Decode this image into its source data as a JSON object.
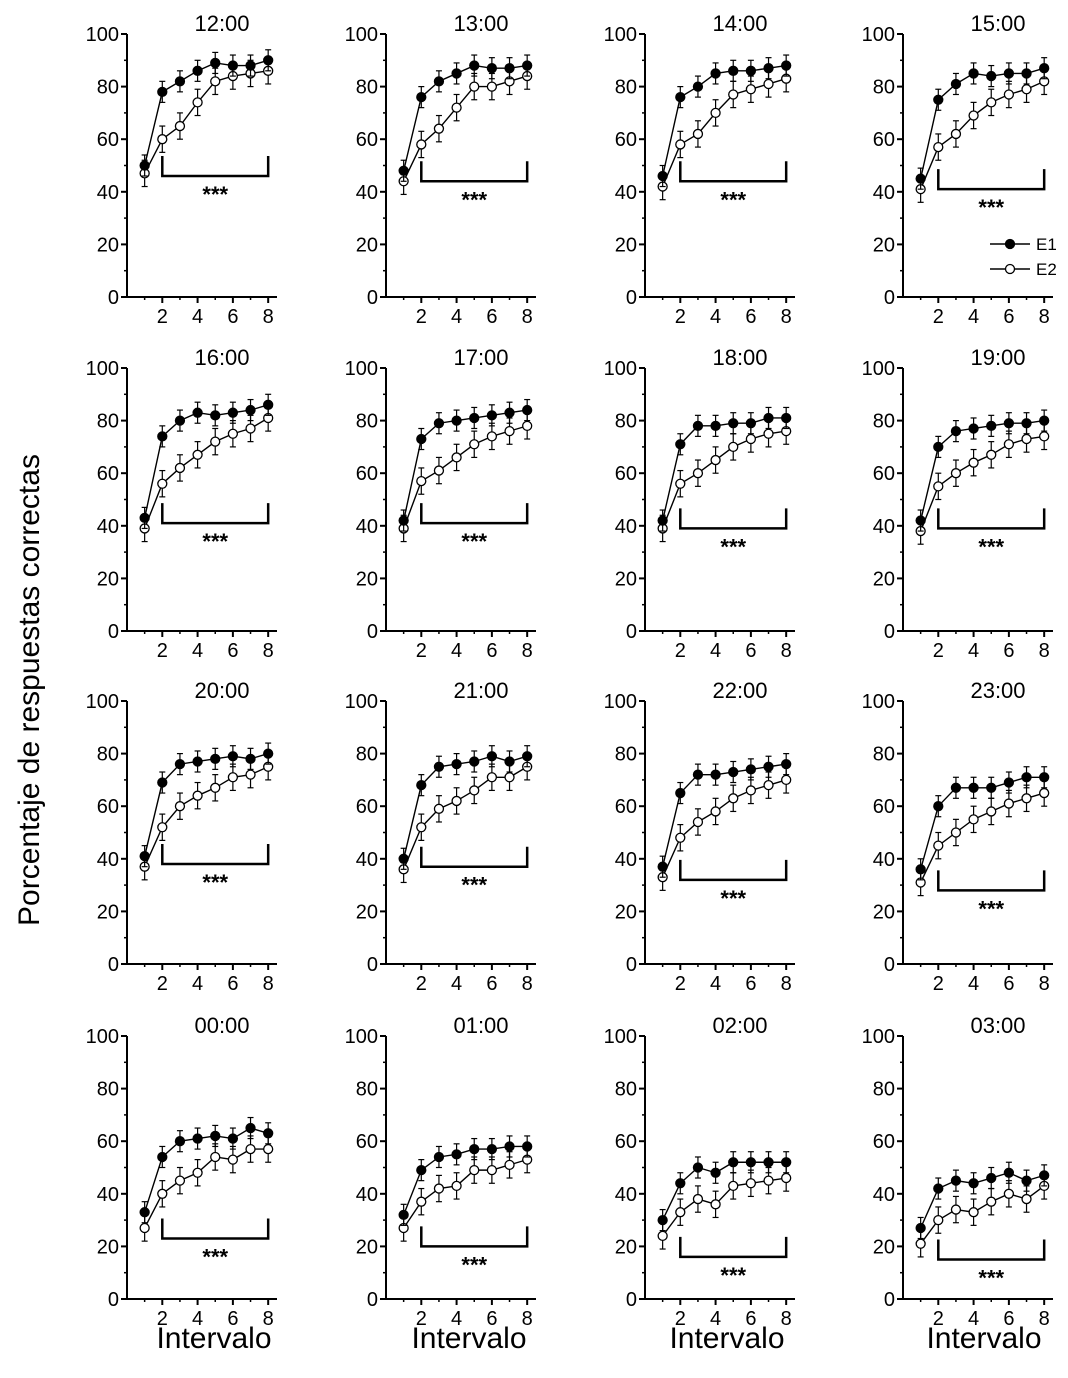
{
  "figure": {
    "ylabel": "Porcentaje de respuestas correctas",
    "xlabels": [
      "Intervalo",
      "Intervalo",
      "Intervalo",
      "Intervalo"
    ],
    "legend": {
      "entries": [
        "E1",
        "E2"
      ],
      "placement": "bottom-right of 15:00 panel"
    },
    "significance_label": "***",
    "colors": {
      "line": "#000000",
      "e1_marker": "#000000",
      "e2_marker": "#ffffff"
    }
  },
  "chart_data": [
    {
      "type": "line",
      "title": "12:00",
      "x": [
        1,
        2,
        3,
        4,
        5,
        6,
        7,
        8
      ],
      "xlim": [
        0,
        8.5
      ],
      "ylim": [
        0,
        100
      ],
      "xticks": [
        "2",
        "4",
        "6",
        "8"
      ],
      "yticks": [
        "0",
        "20",
        "40",
        "60",
        "80",
        "100"
      ],
      "series": [
        {
          "name": "E1",
          "values": [
            50,
            78,
            82,
            86,
            89,
            88,
            88,
            90
          ]
        },
        {
          "name": "E2",
          "values": [
            47,
            60,
            65,
            74,
            82,
            84,
            85,
            86
          ]
        }
      ],
      "annotation": {
        "text": "***",
        "x_from": 2,
        "x_to": 8,
        "y": 46
      }
    },
    {
      "type": "line",
      "title": "13:00",
      "x": [
        1,
        2,
        3,
        4,
        5,
        6,
        7,
        8
      ],
      "xlim": [
        0,
        8.5
      ],
      "ylim": [
        0,
        100
      ],
      "xticks": [
        "2",
        "4",
        "6",
        "8"
      ],
      "yticks": [
        "0",
        "20",
        "40",
        "60",
        "80",
        "100"
      ],
      "series": [
        {
          "name": "E1",
          "values": [
            48,
            76,
            82,
            85,
            88,
            87,
            87,
            88
          ]
        },
        {
          "name": "E2",
          "values": [
            44,
            58,
            64,
            72,
            80,
            80,
            82,
            84
          ]
        }
      ],
      "annotation": {
        "text": "***",
        "x_from": 2,
        "x_to": 8,
        "y": 44
      }
    },
    {
      "type": "line",
      "title": "14:00",
      "x": [
        1,
        2,
        3,
        4,
        5,
        6,
        7,
        8
      ],
      "xlim": [
        0,
        8.5
      ],
      "ylim": [
        0,
        100
      ],
      "xticks": [
        "2",
        "4",
        "6",
        "8"
      ],
      "yticks": [
        "0",
        "20",
        "40",
        "60",
        "80",
        "100"
      ],
      "series": [
        {
          "name": "E1",
          "values": [
            46,
            76,
            80,
            85,
            86,
            86,
            87,
            88
          ]
        },
        {
          "name": "E2",
          "values": [
            42,
            58,
            62,
            70,
            77,
            79,
            81,
            83
          ]
        }
      ],
      "annotation": {
        "text": "***",
        "x_from": 2,
        "x_to": 8,
        "y": 44
      }
    },
    {
      "type": "line",
      "title": "15:00",
      "x": [
        1,
        2,
        3,
        4,
        5,
        6,
        7,
        8
      ],
      "xlim": [
        0,
        8.5
      ],
      "ylim": [
        0,
        100
      ],
      "xticks": [
        "2",
        "4",
        "6",
        "8"
      ],
      "yticks": [
        "0",
        "20",
        "40",
        "60",
        "80",
        "100"
      ],
      "series": [
        {
          "name": "E1",
          "values": [
            45,
            75,
            81,
            85,
            84,
            85,
            85,
            87
          ]
        },
        {
          "name": "E2",
          "values": [
            41,
            57,
            62,
            69,
            74,
            77,
            79,
            82
          ]
        }
      ],
      "annotation": {
        "text": "***",
        "x_from": 2,
        "x_to": 8,
        "y": 41
      }
    },
    {
      "type": "line",
      "title": "16:00",
      "x": [
        1,
        2,
        3,
        4,
        5,
        6,
        7,
        8
      ],
      "xlim": [
        0,
        8.5
      ],
      "ylim": [
        0,
        100
      ],
      "xticks": [
        "2",
        "4",
        "6",
        "8"
      ],
      "yticks": [
        "0",
        "20",
        "40",
        "60",
        "80",
        "100"
      ],
      "series": [
        {
          "name": "E1",
          "values": [
            43,
            74,
            80,
            83,
            82,
            83,
            84,
            86
          ]
        },
        {
          "name": "E2",
          "values": [
            39,
            56,
            62,
            67,
            72,
            75,
            77,
            81
          ]
        }
      ],
      "annotation": {
        "text": "***",
        "x_from": 2,
        "x_to": 8,
        "y": 41
      }
    },
    {
      "type": "line",
      "title": "17:00",
      "x": [
        1,
        2,
        3,
        4,
        5,
        6,
        7,
        8
      ],
      "xlim": [
        0,
        8.5
      ],
      "ylim": [
        0,
        100
      ],
      "xticks": [
        "2",
        "4",
        "6",
        "8"
      ],
      "yticks": [
        "0",
        "20",
        "40",
        "60",
        "80",
        "100"
      ],
      "series": [
        {
          "name": "E1",
          "values": [
            42,
            73,
            79,
            80,
            81,
            82,
            83,
            84
          ]
        },
        {
          "name": "E2",
          "values": [
            39,
            57,
            61,
            66,
            71,
            74,
            76,
            78
          ]
        }
      ],
      "annotation": {
        "text": "***",
        "x_from": 2,
        "x_to": 8,
        "y": 41
      }
    },
    {
      "type": "line",
      "title": "18:00",
      "x": [
        1,
        2,
        3,
        4,
        5,
        6,
        7,
        8
      ],
      "xlim": [
        0,
        8.5
      ],
      "ylim": [
        0,
        100
      ],
      "xticks": [
        "2",
        "4",
        "6",
        "8"
      ],
      "yticks": [
        "0",
        "20",
        "40",
        "60",
        "80",
        "100"
      ],
      "series": [
        {
          "name": "E1",
          "values": [
            42,
            71,
            78,
            78,
            79,
            79,
            81,
            81
          ]
        },
        {
          "name": "E2",
          "values": [
            39,
            56,
            60,
            65,
            70,
            73,
            75,
            76
          ]
        }
      ],
      "annotation": {
        "text": "***",
        "x_from": 2,
        "x_to": 8,
        "y": 39
      }
    },
    {
      "type": "line",
      "title": "19:00",
      "x": [
        1,
        2,
        3,
        4,
        5,
        6,
        7,
        8
      ],
      "xlim": [
        0,
        8.5
      ],
      "ylim": [
        0,
        100
      ],
      "xticks": [
        "2",
        "4",
        "6",
        "8"
      ],
      "yticks": [
        "0",
        "20",
        "40",
        "60",
        "80",
        "100"
      ],
      "series": [
        {
          "name": "E1",
          "values": [
            42,
            70,
            76,
            77,
            78,
            79,
            79,
            80
          ]
        },
        {
          "name": "E2",
          "values": [
            38,
            55,
            60,
            64,
            67,
            71,
            73,
            74
          ]
        }
      ],
      "annotation": {
        "text": "***",
        "x_from": 2,
        "x_to": 8,
        "y": 39
      }
    },
    {
      "type": "line",
      "title": "20:00",
      "x": [
        1,
        2,
        3,
        4,
        5,
        6,
        7,
        8
      ],
      "xlim": [
        0,
        8.5
      ],
      "ylim": [
        0,
        100
      ],
      "xticks": [
        "2",
        "4",
        "6",
        "8"
      ],
      "yticks": [
        "0",
        "20",
        "40",
        "60",
        "80",
        "100"
      ],
      "series": [
        {
          "name": "E1",
          "values": [
            41,
            69,
            76,
            77,
            78,
            79,
            78,
            80
          ]
        },
        {
          "name": "E2",
          "values": [
            37,
            52,
            60,
            64,
            67,
            71,
            72,
            75
          ]
        }
      ],
      "annotation": {
        "text": "***",
        "x_from": 2,
        "x_to": 8,
        "y": 38
      }
    },
    {
      "type": "line",
      "title": "21:00",
      "x": [
        1,
        2,
        3,
        4,
        5,
        6,
        7,
        8
      ],
      "xlim": [
        0,
        8.5
      ],
      "ylim": [
        0,
        100
      ],
      "xticks": [
        "2",
        "4",
        "6",
        "8"
      ],
      "yticks": [
        "0",
        "20",
        "40",
        "60",
        "80",
        "100"
      ],
      "series": [
        {
          "name": "E1",
          "values": [
            40,
            68,
            75,
            76,
            77,
            79,
            77,
            79
          ]
        },
        {
          "name": "E2",
          "values": [
            36,
            52,
            59,
            62,
            66,
            71,
            71,
            75
          ]
        }
      ],
      "annotation": {
        "text": "***",
        "x_from": 2,
        "x_to": 8,
        "y": 37
      }
    },
    {
      "type": "line",
      "title": "22:00",
      "x": [
        1,
        2,
        3,
        4,
        5,
        6,
        7,
        8
      ],
      "xlim": [
        0,
        8.5
      ],
      "ylim": [
        0,
        100
      ],
      "xticks": [
        "2",
        "4",
        "6",
        "8"
      ],
      "yticks": [
        "0",
        "20",
        "40",
        "60",
        "80",
        "100"
      ],
      "series": [
        {
          "name": "E1",
          "values": [
            37,
            65,
            72,
            72,
            73,
            74,
            75,
            76
          ]
        },
        {
          "name": "E2",
          "values": [
            33,
            48,
            54,
            58,
            63,
            66,
            68,
            70
          ]
        }
      ],
      "annotation": {
        "text": "***",
        "x_from": 2,
        "x_to": 8,
        "y": 32
      }
    },
    {
      "type": "line",
      "title": "23:00",
      "x": [
        1,
        2,
        3,
        4,
        5,
        6,
        7,
        8
      ],
      "xlim": [
        0,
        8.5
      ],
      "ylim": [
        0,
        100
      ],
      "xticks": [
        "2",
        "4",
        "6",
        "8"
      ],
      "yticks": [
        "0",
        "20",
        "40",
        "60",
        "80",
        "100"
      ],
      "series": [
        {
          "name": "E1",
          "values": [
            36,
            60,
            67,
            67,
            67,
            69,
            71,
            71
          ]
        },
        {
          "name": "E2",
          "values": [
            31,
            45,
            50,
            55,
            58,
            61,
            63,
            65
          ]
        }
      ],
      "annotation": {
        "text": "***",
        "x_from": 2,
        "x_to": 8,
        "y": 28
      }
    },
    {
      "type": "line",
      "title": "00:00",
      "x": [
        1,
        2,
        3,
        4,
        5,
        6,
        7,
        8
      ],
      "xlim": [
        0,
        8.5
      ],
      "ylim": [
        0,
        100
      ],
      "xticks": [
        "2",
        "4",
        "6",
        "8"
      ],
      "yticks": [
        "0",
        "20",
        "40",
        "60",
        "80",
        "100"
      ],
      "series": [
        {
          "name": "E1",
          "values": [
            33,
            54,
            60,
            61,
            62,
            61,
            65,
            63
          ]
        },
        {
          "name": "E2",
          "values": [
            27,
            40,
            45,
            48,
            54,
            53,
            57,
            57
          ]
        }
      ],
      "annotation": {
        "text": "***",
        "x_from": 2,
        "x_to": 8,
        "y": 23
      }
    },
    {
      "type": "line",
      "title": "01:00",
      "x": [
        1,
        2,
        3,
        4,
        5,
        6,
        7,
        8
      ],
      "xlim": [
        0,
        8.5
      ],
      "ylim": [
        0,
        100
      ],
      "xticks": [
        "2",
        "4",
        "6",
        "8"
      ],
      "yticks": [
        "0",
        "20",
        "40",
        "60",
        "80",
        "100"
      ],
      "series": [
        {
          "name": "E1",
          "values": [
            32,
            49,
            54,
            55,
            57,
            57,
            58,
            58
          ]
        },
        {
          "name": "E2",
          "values": [
            27,
            37,
            42,
            43,
            49,
            49,
            51,
            53
          ]
        }
      ],
      "annotation": {
        "text": "***",
        "x_from": 2,
        "x_to": 8,
        "y": 20
      }
    },
    {
      "type": "line",
      "title": "02:00",
      "x": [
        1,
        2,
        3,
        4,
        5,
        6,
        7,
        8
      ],
      "xlim": [
        0,
        8.5
      ],
      "ylim": [
        0,
        100
      ],
      "xticks": [
        "2",
        "4",
        "6",
        "8"
      ],
      "yticks": [
        "0",
        "20",
        "40",
        "60",
        "80",
        "100"
      ],
      "series": [
        {
          "name": "E1",
          "values": [
            30,
            44,
            50,
            48,
            52,
            52,
            52,
            52
          ]
        },
        {
          "name": "E2",
          "values": [
            24,
            33,
            38,
            36,
            43,
            44,
            45,
            46
          ]
        }
      ],
      "annotation": {
        "text": "***",
        "x_from": 2,
        "x_to": 8,
        "y": 16
      }
    },
    {
      "type": "line",
      "title": "03:00",
      "x": [
        1,
        2,
        3,
        4,
        5,
        6,
        7,
        8
      ],
      "xlim": [
        0,
        8.5
      ],
      "ylim": [
        0,
        100
      ],
      "xticks": [
        "2",
        "4",
        "6",
        "8"
      ],
      "yticks": [
        "0",
        "20",
        "40",
        "60",
        "80",
        "100"
      ],
      "series": [
        {
          "name": "E1",
          "values": [
            27,
            42,
            45,
            44,
            46,
            48,
            45,
            47
          ]
        },
        {
          "name": "E2",
          "values": [
            21,
            30,
            34,
            33,
            37,
            40,
            38,
            43
          ]
        }
      ],
      "annotation": {
        "text": "***",
        "x_from": 2,
        "x_to": 8,
        "y": 15
      }
    }
  ]
}
